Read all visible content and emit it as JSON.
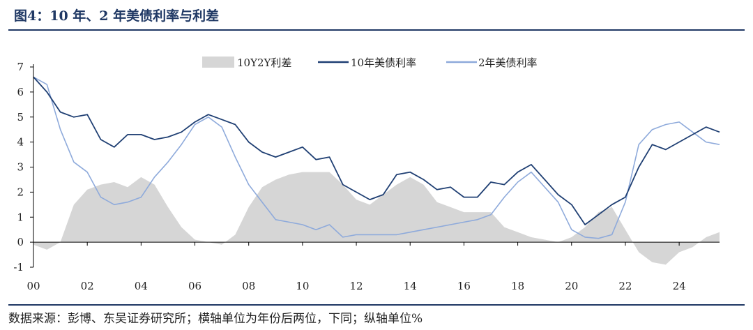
{
  "header": {
    "title": "图4：10 年、2 年美债利率与利差"
  },
  "footer": {
    "source": "数据来源：彭博、东吴证券研究所；横轴单位为年份后两位，下同；纵轴单位%"
  },
  "colors": {
    "ten_year": "#1f3f73",
    "two_year": "#8eaadb",
    "spread": "#d6d6d6",
    "axis": "#000000"
  },
  "chart_data": {
    "type": "line",
    "title": "",
    "xlabel": "",
    "ylabel": "",
    "xlim": [
      0,
      25.5
    ],
    "ylim": [
      -1,
      7
    ],
    "x_tick_labels": [
      "00",
      "02",
      "04",
      "06",
      "08",
      "10",
      "12",
      "14",
      "16",
      "18",
      "20",
      "22",
      "24"
    ],
    "y_tick_labels": [
      "-1",
      "0",
      "1",
      "2",
      "3",
      "4",
      "5",
      "6",
      "7"
    ],
    "legend_position": "top-center",
    "series": [
      {
        "name": "10Y2Y利差",
        "type": "area",
        "x": [
          0,
          0.5,
          1.0,
          1.5,
          2.0,
          2.5,
          3.0,
          3.5,
          4.0,
          4.5,
          5.0,
          5.5,
          6.0,
          6.5,
          7.0,
          7.5,
          8.0,
          8.5,
          9.0,
          9.5,
          10.0,
          10.5,
          11.0,
          11.5,
          12.0,
          12.5,
          13.0,
          13.5,
          14.0,
          14.5,
          15.0,
          15.5,
          16.0,
          16.5,
          17.0,
          17.5,
          18.0,
          18.5,
          19.0,
          19.5,
          20.0,
          20.5,
          21.0,
          21.5,
          22.0,
          22.5,
          23.0,
          23.5,
          24.0,
          24.5,
          25.0,
          25.5
        ],
        "values": [
          -0.1,
          -0.3,
          0.0,
          1.5,
          2.1,
          2.3,
          2.4,
          2.2,
          2.6,
          2.3,
          1.4,
          0.6,
          0.1,
          0.0,
          -0.1,
          0.3,
          1.4,
          2.2,
          2.5,
          2.7,
          2.8,
          2.8,
          2.8,
          2.3,
          1.7,
          1.5,
          1.9,
          2.3,
          2.6,
          2.3,
          1.6,
          1.4,
          1.2,
          1.2,
          1.2,
          0.6,
          0.4,
          0.2,
          0.1,
          0.0,
          0.2,
          0.6,
          1.2,
          1.4,
          0.5,
          -0.4,
          -0.8,
          -0.9,
          -0.4,
          -0.2,
          0.2,
          0.4
        ]
      },
      {
        "name": "10年美债利率",
        "type": "line",
        "x": [
          0,
          0.5,
          1.0,
          1.5,
          2.0,
          2.5,
          3.0,
          3.5,
          4.0,
          4.5,
          5.0,
          5.5,
          6.0,
          6.5,
          7.0,
          7.5,
          8.0,
          8.5,
          9.0,
          9.5,
          10.0,
          10.5,
          11.0,
          11.5,
          12.0,
          12.5,
          13.0,
          13.5,
          14.0,
          14.5,
          15.0,
          15.5,
          16.0,
          16.5,
          17.0,
          17.5,
          18.0,
          18.5,
          19.0,
          19.5,
          20.0,
          20.5,
          21.0,
          21.5,
          22.0,
          22.5,
          23.0,
          23.5,
          24.0,
          24.5,
          25.0,
          25.5
        ],
        "values": [
          6.6,
          6.0,
          5.2,
          5.0,
          5.1,
          4.1,
          3.8,
          4.3,
          4.3,
          4.1,
          4.2,
          4.4,
          4.8,
          5.1,
          4.9,
          4.7,
          4.0,
          3.6,
          3.4,
          3.6,
          3.8,
          3.3,
          3.4,
          2.3,
          2.0,
          1.7,
          1.9,
          2.7,
          2.8,
          2.5,
          2.1,
          2.2,
          1.8,
          1.8,
          2.4,
          2.3,
          2.8,
          3.1,
          2.5,
          1.9,
          1.5,
          0.7,
          1.1,
          1.5,
          1.8,
          3.0,
          3.9,
          3.7,
          4.0,
          4.3,
          4.6,
          4.4
        ]
      },
      {
        "name": "2年美债利率",
        "type": "line",
        "x": [
          0,
          0.5,
          1.0,
          1.5,
          2.0,
          2.5,
          3.0,
          3.5,
          4.0,
          4.5,
          5.0,
          5.5,
          6.0,
          6.5,
          7.0,
          7.5,
          8.0,
          8.5,
          9.0,
          9.5,
          10.0,
          10.5,
          11.0,
          11.5,
          12.0,
          12.5,
          13.0,
          13.5,
          14.0,
          14.5,
          15.0,
          15.5,
          16.0,
          16.5,
          17.0,
          17.5,
          18.0,
          18.5,
          19.0,
          19.5,
          20.0,
          20.5,
          21.0,
          21.5,
          22.0,
          22.5,
          23.0,
          23.5,
          24.0,
          24.5,
          25.0,
          25.5
        ],
        "values": [
          6.6,
          6.3,
          4.5,
          3.2,
          2.8,
          1.8,
          1.5,
          1.6,
          1.8,
          2.6,
          3.2,
          3.9,
          4.7,
          5.0,
          4.6,
          3.4,
          2.3,
          1.6,
          0.9,
          0.8,
          0.7,
          0.5,
          0.7,
          0.2,
          0.3,
          0.3,
          0.3,
          0.3,
          0.4,
          0.5,
          0.6,
          0.7,
          0.8,
          0.9,
          1.1,
          1.8,
          2.4,
          2.8,
          2.2,
          1.6,
          0.5,
          0.2,
          0.15,
          0.3,
          1.6,
          3.9,
          4.5,
          4.7,
          4.8,
          4.4,
          4.0,
          3.9
        ]
      }
    ]
  }
}
